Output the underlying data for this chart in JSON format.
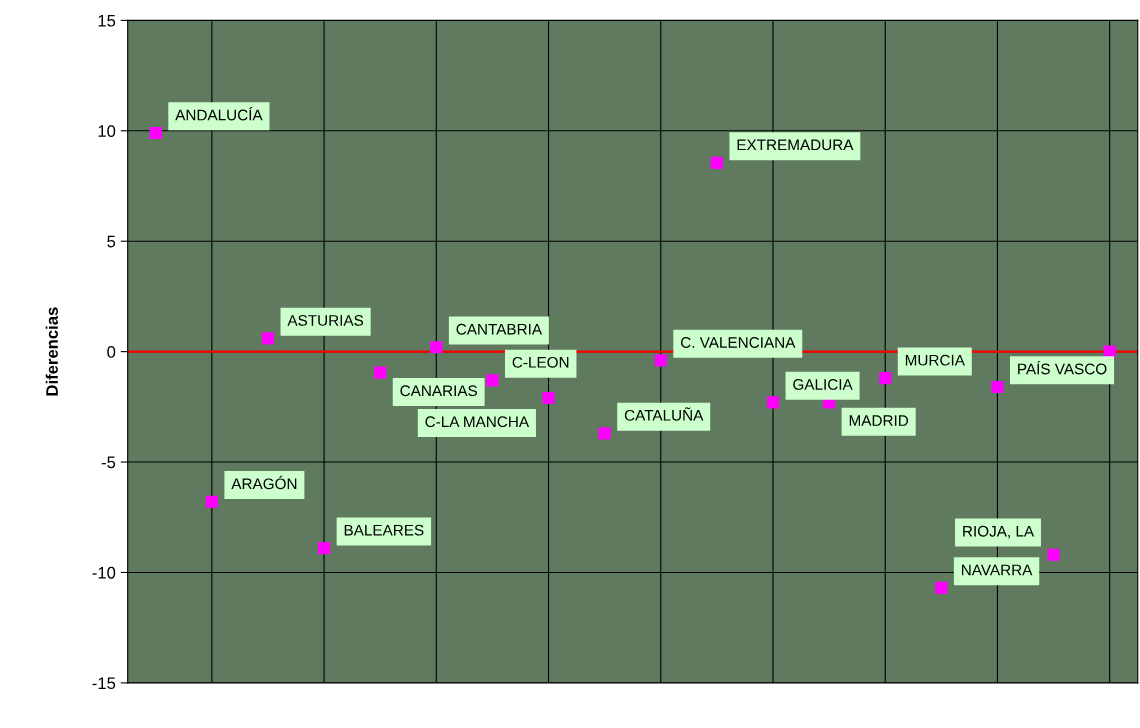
{
  "chart_data": {
    "type": "scatter",
    "ylabel": "Diferencias",
    "categories": [
      null,
      null,
      null,
      null,
      null,
      null,
      null,
      null,
      null,
      null,
      null,
      null,
      null,
      null,
      null,
      null,
      null,
      null
    ],
    "annotations": [
      "ANDALUCÍA",
      "ARAGÓN",
      "ASTURIAS",
      "BALEARES",
      "CANARIAS",
      "CANTABRIA",
      "C-LEON",
      "C-LA MANCHA",
      "CATALUÑA",
      "C. VALENCIANA",
      "EXTREMADURA",
      "GALICIA",
      "MADRID",
      "MURCIA",
      "NAVARRA",
      "PAÍS VASCO",
      "RIOJA, LA"
    ],
    "series": [
      {
        "color": "#ff00ff",
        "values": [
          9.9,
          -6.8,
          0.6,
          -8.9,
          -0.95,
          0.2,
          -1.3,
          -2.1,
          -3.7,
          -0.4,
          8.55,
          -2.3,
          -2.3,
          -1.2,
          -10.7,
          -1.6,
          -9.2,
          0
        ]
      }
    ],
    "ylim": [
      -15,
      15
    ],
    "yticks": [
      -15,
      -10,
      -5,
      0,
      5,
      10,
      15
    ],
    "tick_labels": "y",
    "grid": true,
    "marker": "square",
    "ref_lines": [
      {
        "axis": "y",
        "value": 0,
        "color": "#ff0000"
      }
    ]
  }
}
